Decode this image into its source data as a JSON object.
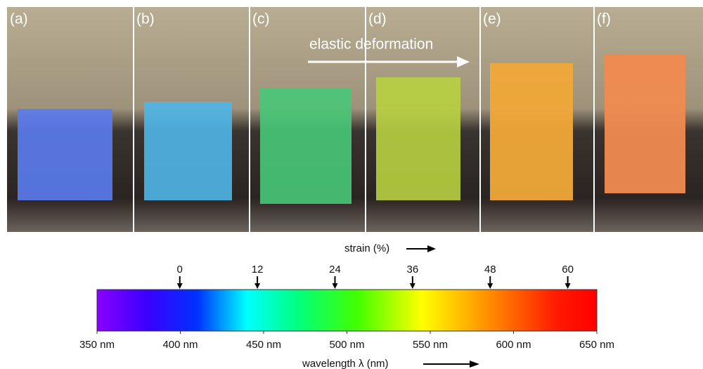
{
  "panels": [
    {
      "label": "(a)"
    },
    {
      "label": "(b)"
    },
    {
      "label": "(c)"
    },
    {
      "label": "(d)"
    },
    {
      "label": "(e)"
    },
    {
      "label": "(f)"
    }
  ],
  "annotation": "elastic deformation",
  "strain_axis": {
    "label": "strain (%)",
    "xlim": [
      -12.8,
      64.5
    ],
    "ticks": [
      0,
      12,
      24,
      36,
      48,
      60
    ]
  },
  "wavelength_axis": {
    "label": "wavelength λ (nm)",
    "xlim": [
      350,
      650
    ],
    "ticks": [
      {
        "value": 350,
        "label": "350 nm"
      },
      {
        "value": 400,
        "label": "400 nm"
      },
      {
        "value": 450,
        "label": "450 nm"
      },
      {
        "value": 500,
        "label": "500 nm"
      },
      {
        "value": 550,
        "label": "550 nm"
      },
      {
        "value": 600,
        "label": "600 nm"
      },
      {
        "value": 650,
        "label": "650 nm"
      }
    ]
  }
}
